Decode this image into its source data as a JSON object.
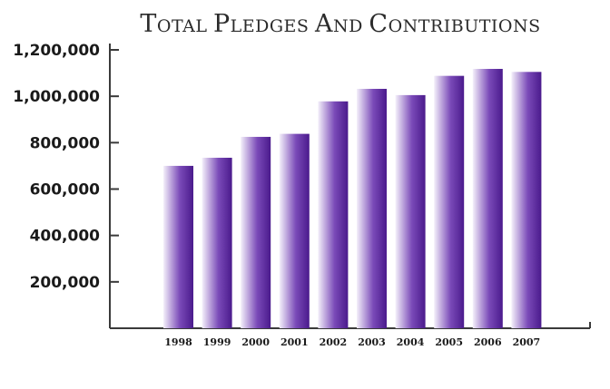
{
  "chart_data": {
    "type": "bar",
    "title": "Total Pledges and Contributions",
    "xlabel": "",
    "ylabel": "",
    "categories": [
      "1998",
      "1999",
      "2000",
      "2001",
      "2002",
      "2003",
      "2004",
      "2005",
      "2006",
      "2007"
    ],
    "values": [
      700000,
      735000,
      825000,
      838000,
      978000,
      1032000,
      1005000,
      1088000,
      1118000,
      1105000
    ],
    "ylim": [
      0,
      1200000
    ],
    "yticks": [
      200000,
      400000,
      600000,
      800000,
      1000000,
      1200000
    ],
    "ytick_labels": [
      "200,000",
      "400,000",
      "600,000",
      "800,000",
      "1,000,000",
      "1,200,000"
    ],
    "grid": false,
    "legend": "none",
    "colors": {
      "bar_dark": "#4a1a8c",
      "bar_mid": "#7a4ab8",
      "bar_light": "#f4f0fa",
      "axis": "#3a3a3a"
    }
  }
}
